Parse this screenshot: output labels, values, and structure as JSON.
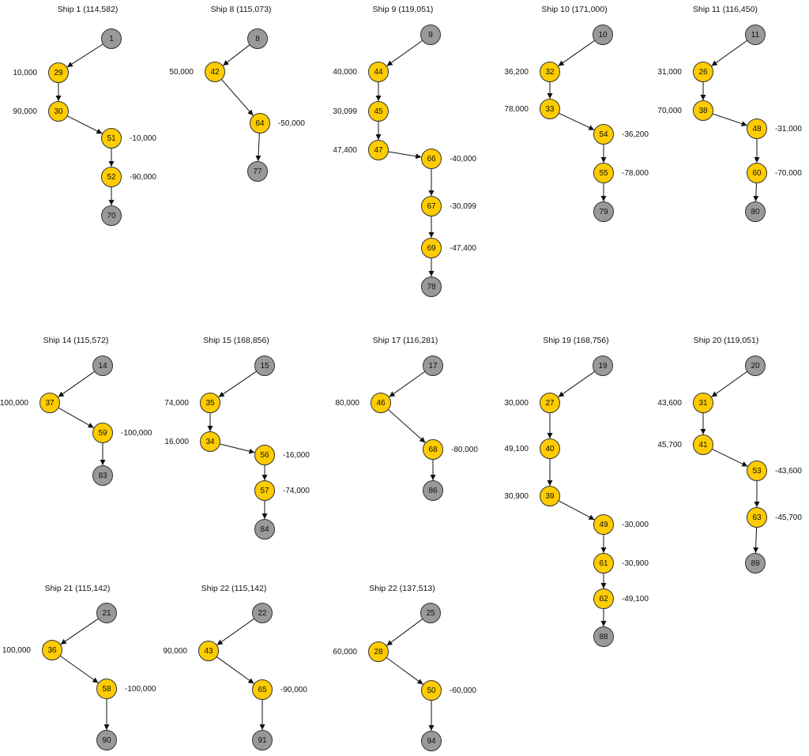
{
  "colors": {
    "source_node": "#999999",
    "flow_node": "#FFCC00",
    "node_stroke": "#333333"
  },
  "panels": [
    {
      "title": "Ship 1 (114,582)",
      "nodes": [
        {
          "id": "1",
          "kind": "source"
        },
        {
          "id": "29",
          "kind": "flow",
          "label": "10,000"
        },
        {
          "id": "30",
          "kind": "flow",
          "label": "90,000"
        },
        {
          "id": "51",
          "kind": "flow",
          "label": "-10,000"
        },
        {
          "id": "52",
          "kind": "flow",
          "label": "-90,000"
        },
        {
          "id": "70",
          "kind": "source"
        }
      ],
      "edges": [
        [
          "1",
          "29"
        ],
        [
          "29",
          "30"
        ],
        [
          "30",
          "51"
        ],
        [
          "51",
          "52"
        ],
        [
          "52",
          "70"
        ]
      ]
    },
    {
      "title": "Ship 8 (115,073)",
      "nodes": [
        {
          "id": "8",
          "kind": "source"
        },
        {
          "id": "42",
          "kind": "flow",
          "label": "50,000"
        },
        {
          "id": "64",
          "kind": "flow",
          "label": "-50,000"
        },
        {
          "id": "77",
          "kind": "source"
        }
      ],
      "edges": [
        [
          "8",
          "42"
        ],
        [
          "42",
          "64"
        ],
        [
          "64",
          "77"
        ]
      ]
    },
    {
      "title": "Ship 9 (119,051)",
      "nodes": [
        {
          "id": "9",
          "kind": "source"
        },
        {
          "id": "44",
          "kind": "flow",
          "label": "40,000"
        },
        {
          "id": "45",
          "kind": "flow",
          "label": "30,099"
        },
        {
          "id": "47",
          "kind": "flow",
          "label": "47,400"
        },
        {
          "id": "66",
          "kind": "flow",
          "label": "-40,000"
        },
        {
          "id": "67",
          "kind": "flow",
          "label": "-30,099"
        },
        {
          "id": "69",
          "kind": "flow",
          "label": "-47,400"
        },
        {
          "id": "78",
          "kind": "source"
        }
      ],
      "edges": [
        [
          "9",
          "44"
        ],
        [
          "44",
          "45"
        ],
        [
          "45",
          "47"
        ],
        [
          "47",
          "66"
        ],
        [
          "66",
          "67"
        ],
        [
          "67",
          "69"
        ],
        [
          "69",
          "78"
        ]
      ]
    },
    {
      "title": "Ship 10 (171,000)",
      "nodes": [
        {
          "id": "10",
          "kind": "source"
        },
        {
          "id": "32",
          "kind": "flow",
          "label": "36,200"
        },
        {
          "id": "33",
          "kind": "flow",
          "label": "78,000"
        },
        {
          "id": "54",
          "kind": "flow",
          "label": "-36,200"
        },
        {
          "id": "55",
          "kind": "flow",
          "label": "-78,000"
        },
        {
          "id": "79",
          "kind": "source"
        }
      ],
      "edges": [
        [
          "10",
          "32"
        ],
        [
          "32",
          "33"
        ],
        [
          "33",
          "54"
        ],
        [
          "54",
          "55"
        ],
        [
          "55",
          "79"
        ]
      ]
    },
    {
      "title": "Ship 11 (116,450)",
      "nodes": [
        {
          "id": "11",
          "kind": "source"
        },
        {
          "id": "26",
          "kind": "flow",
          "label": "31,000"
        },
        {
          "id": "38",
          "kind": "flow",
          "label": "70,000"
        },
        {
          "id": "48",
          "kind": "flow",
          "label": "-31,000"
        },
        {
          "id": "60",
          "kind": "flow",
          "label": "-70,000"
        },
        {
          "id": "80",
          "kind": "source"
        }
      ],
      "edges": [
        [
          "11",
          "26"
        ],
        [
          "26",
          "38"
        ],
        [
          "38",
          "48"
        ],
        [
          "48",
          "60"
        ],
        [
          "60",
          "80"
        ]
      ]
    },
    {
      "title": "Ship 14 (115,572)",
      "nodes": [
        {
          "id": "14",
          "kind": "source"
        },
        {
          "id": "37",
          "kind": "flow",
          "label": "100,000"
        },
        {
          "id": "59",
          "kind": "flow",
          "label": "-100,000"
        },
        {
          "id": "83",
          "kind": "source"
        }
      ],
      "edges": [
        [
          "14",
          "37"
        ],
        [
          "37",
          "59"
        ],
        [
          "59",
          "83"
        ]
      ]
    },
    {
      "title": "Ship 15 (168,856)",
      "nodes": [
        {
          "id": "15",
          "kind": "source"
        },
        {
          "id": "35",
          "kind": "flow",
          "label": "74,000"
        },
        {
          "id": "34",
          "kind": "flow",
          "label": "16,000"
        },
        {
          "id": "56",
          "kind": "flow",
          "label": "-16,000"
        },
        {
          "id": "57",
          "kind": "flow",
          "label": "-74,000"
        },
        {
          "id": "84",
          "kind": "source"
        }
      ],
      "edges": [
        [
          "15",
          "35"
        ],
        [
          "35",
          "34"
        ],
        [
          "34",
          "56"
        ],
        [
          "56",
          "57"
        ],
        [
          "57",
          "84"
        ]
      ]
    },
    {
      "title": "Ship 17 (116,281)",
      "nodes": [
        {
          "id": "17",
          "kind": "source"
        },
        {
          "id": "46",
          "kind": "flow",
          "label": "80,000"
        },
        {
          "id": "68",
          "kind": "flow",
          "label": "-80,000"
        },
        {
          "id": "86",
          "kind": "source"
        }
      ],
      "edges": [
        [
          "17",
          "46"
        ],
        [
          "46",
          "68"
        ],
        [
          "68",
          "86"
        ]
      ]
    },
    {
      "title": "Ship 19 (168,756)",
      "nodes": [
        {
          "id": "19",
          "kind": "source"
        },
        {
          "id": "27",
          "kind": "flow",
          "label": "30,000"
        },
        {
          "id": "40",
          "kind": "flow",
          "label": "49,100"
        },
        {
          "id": "39",
          "kind": "flow",
          "label": "30,900"
        },
        {
          "id": "49",
          "kind": "flow",
          "label": "-30,000"
        },
        {
          "id": "61",
          "kind": "flow",
          "label": "-30,900"
        },
        {
          "id": "62",
          "kind": "flow",
          "label": "-49,100"
        },
        {
          "id": "88",
          "kind": "source"
        }
      ],
      "edges": [
        [
          "19",
          "27"
        ],
        [
          "27",
          "40"
        ],
        [
          "40",
          "39"
        ],
        [
          "39",
          "49"
        ],
        [
          "49",
          "61"
        ],
        [
          "61",
          "62"
        ],
        [
          "62",
          "88"
        ]
      ]
    },
    {
      "title": "Ship 20 (119,051)",
      "nodes": [
        {
          "id": "20",
          "kind": "source"
        },
        {
          "id": "31",
          "kind": "flow",
          "label": "43,600"
        },
        {
          "id": "41",
          "kind": "flow",
          "label": "45,700"
        },
        {
          "id": "53",
          "kind": "flow",
          "label": "-43,600"
        },
        {
          "id": "63",
          "kind": "flow",
          "label": "-45,700"
        },
        {
          "id": "89",
          "kind": "source"
        }
      ],
      "edges": [
        [
          "20",
          "31"
        ],
        [
          "31",
          "41"
        ],
        [
          "41",
          "53"
        ],
        [
          "53",
          "63"
        ],
        [
          "63",
          "89"
        ]
      ]
    },
    {
      "title": "Ship 21 (115,142)",
      "nodes": [
        {
          "id": "21",
          "kind": "source"
        },
        {
          "id": "36",
          "kind": "flow",
          "label": "100,000"
        },
        {
          "id": "58",
          "kind": "flow",
          "label": "-100,000"
        },
        {
          "id": "90",
          "kind": "source"
        }
      ],
      "edges": [
        [
          "21",
          "36"
        ],
        [
          "36",
          "58"
        ],
        [
          "58",
          "90"
        ]
      ]
    },
    {
      "title": "Ship 22 (115,142)",
      "nodes": [
        {
          "id": "22",
          "kind": "source"
        },
        {
          "id": "43",
          "kind": "flow",
          "label": "90,000"
        },
        {
          "id": "65",
          "kind": "flow",
          "label": "-90,000"
        },
        {
          "id": "91",
          "kind": "source"
        }
      ],
      "edges": [
        [
          "22",
          "43"
        ],
        [
          "43",
          "65"
        ],
        [
          "65",
          "91"
        ]
      ]
    },
    {
      "title": "Ship 22 (137,513)",
      "nodes": [
        {
          "id": "25",
          "kind": "source"
        },
        {
          "id": "28",
          "kind": "flow",
          "label": "60,000"
        },
        {
          "id": "50",
          "kind": "flow",
          "label": "-60,000"
        },
        {
          "id": "94",
          "kind": "source"
        }
      ],
      "edges": [
        [
          "25",
          "28"
        ],
        [
          "28",
          "50"
        ],
        [
          "50",
          "94"
        ]
      ]
    }
  ]
}
